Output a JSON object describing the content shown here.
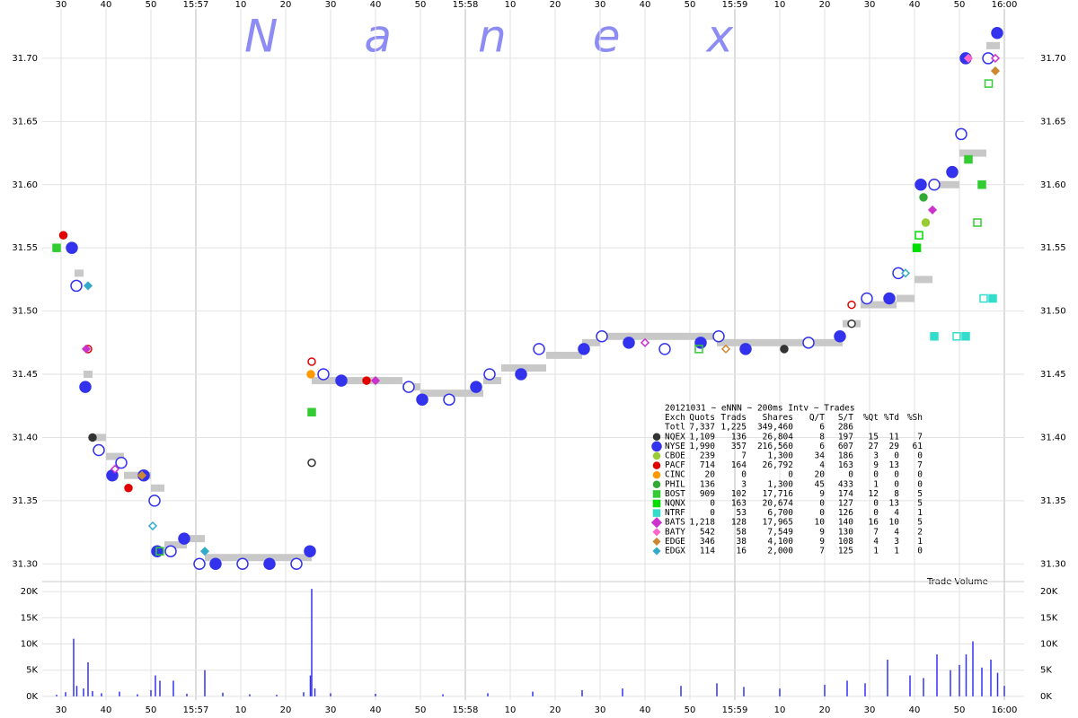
{
  "chart_data": [
    {
      "type": "scatter",
      "watermark": "Nanex",
      "xlim": [
        25.8,
        244.4
      ],
      "xticks": [
        30,
        40,
        50,
        {
          "value": 60,
          "label": "15:57"
        },
        {
          "value": 70,
          "label": "10"
        },
        {
          "value": 80,
          "label": "20"
        },
        {
          "value": 90,
          "label": "30"
        },
        {
          "value": 100,
          "label": "40"
        },
        {
          "value": 110,
          "label": "50"
        },
        {
          "value": 120,
          "label": "15:58"
        },
        {
          "value": 130,
          "label": "10"
        },
        {
          "value": 140,
          "label": "20"
        },
        {
          "value": 150,
          "label": "30"
        },
        {
          "value": 160,
          "label": "40"
        },
        {
          "value": 170,
          "label": "50"
        },
        {
          "value": 180,
          "label": "15:59"
        },
        {
          "value": 190,
          "label": "10"
        },
        {
          "value": 200,
          "label": "20"
        },
        {
          "value": 210,
          "label": "30"
        },
        {
          "value": 220,
          "label": "40"
        },
        {
          "value": 230,
          "label": "50"
        },
        {
          "value": 240,
          "label": "16:00"
        }
      ],
      "ylim": [
        31.286,
        31.739
      ],
      "yticks": [
        {
          "value": 31.3,
          "label": "31.30"
        },
        31.35,
        {
          "value": 31.4,
          "label": "31.40"
        },
        31.45,
        {
          "value": 31.5,
          "label": "31.50"
        },
        31.55,
        {
          "value": 31.6,
          "label": "31.60"
        },
        31.65,
        {
          "value": 31.7,
          "label": "31.70"
        }
      ],
      "grid": true,
      "band": {
        "color": "#c8c8c8",
        "x": [
          33,
          35,
          37,
          40,
          44,
          50,
          53,
          58,
          62,
          85.8,
          88,
          106,
          110,
          118,
          124,
          128,
          134,
          138,
          146,
          150,
          176,
          184,
          200,
          204,
          208,
          216,
          220,
          224,
          230,
          236
        ],
        "values": [
          31.53,
          31.45,
          31.4,
          31.385,
          31.37,
          31.36,
          31.315,
          31.32,
          31.305,
          31.445,
          31.445,
          31.44,
          31.435,
          31.435,
          31.445,
          31.455,
          31.455,
          31.465,
          31.475,
          31.48,
          31.475,
          31.475,
          31.475,
          31.49,
          31.505,
          31.51,
          31.525,
          31.6,
          31.625,
          31.71
        ]
      },
      "legend": {
        "title": "20121031 ~ eNNN ~ 200ms Intv ~ Trades",
        "columns": [
          "Exch",
          "Quots",
          "Trads",
          "Shares",
          "Q/T",
          "S/T",
          "%Qt",
          "%Td",
          "%Sh"
        ],
        "total": [
          "Totl",
          "7,337",
          "1,225",
          "349,460",
          "6",
          "286"
        ]
      },
      "series": [
        {
          "name": "NQEX",
          "color": "#333333",
          "marker": "circle",
          "stats": [
            "1,109",
            "136",
            "26,804",
            "8",
            "197",
            "15",
            "11",
            "7"
          ],
          "x": [
            37,
            85.8,
            191,
            206
          ],
          "values": [
            31.4,
            31.38,
            31.47,
            31.49
          ]
        },
        {
          "name": "NYSE",
          "color": "#3333ee",
          "marker": "circle",
          "stats": [
            "1,990",
            "357",
            "216,560",
            "6",
            "607",
            "27",
            "29",
            "61"
          ],
          "x": [
            32.4,
            33.4,
            35.4,
            38.4,
            41.4,
            43.4,
            48.4,
            50.8,
            51.4,
            54.4,
            57.4,
            60.8,
            64.4,
            70.4,
            76.4,
            82.4,
            85.4,
            88.4,
            92.4,
            107.4,
            110.4,
            116.4,
            122.4,
            125.4,
            132.4,
            136.4,
            146.4,
            150.4,
            156.4,
            164.4,
            172.4,
            176.4,
            182.4,
            196.4,
            203.4,
            209.4,
            214.4,
            216.4,
            221.4,
            224.4,
            228.4,
            230.4,
            231.4,
            236.4,
            238.4
          ],
          "values": [
            31.55,
            31.52,
            31.44,
            31.39,
            31.37,
            31.38,
            31.37,
            31.35,
            31.31,
            31.31,
            31.32,
            31.3,
            31.3,
            31.3,
            31.3,
            31.3,
            31.31,
            31.45,
            31.445,
            31.44,
            31.43,
            31.43,
            31.44,
            31.45,
            31.45,
            31.47,
            31.47,
            31.48,
            31.475,
            31.47,
            31.475,
            31.48,
            31.47,
            31.475,
            31.48,
            31.51,
            31.51,
            31.53,
            31.6,
            31.6,
            31.61,
            31.64,
            31.7,
            31.7,
            31.72
          ]
        },
        {
          "name": "CBOE",
          "color": "#99cc33",
          "marker": "circle",
          "stats": [
            "239",
            "7",
            "1,300",
            "34",
            "186",
            "3",
            "0",
            "0"
          ],
          "x": [
            222.5
          ],
          "values": [
            31.57
          ]
        },
        {
          "name": "PACF",
          "color": "#e00000",
          "marker": "circle",
          "stats": [
            "714",
            "164",
            "26,792",
            "4",
            "163",
            "9",
            "13",
            "7"
          ],
          "x": [
            30.5,
            36,
            45,
            85.8,
            98,
            206
          ],
          "values": [
            31.56,
            31.47,
            31.36,
            31.46,
            31.445,
            31.505
          ]
        },
        {
          "name": "CINC",
          "color": "#ff9900",
          "marker": "circle",
          "stats": [
            "20",
            "0",
            "0",
            "20",
            "0",
            "0",
            "0",
            "0"
          ],
          "x": [
            85.6
          ],
          "values": [
            31.45
          ]
        },
        {
          "name": "PHIL",
          "color": "#33aa33",
          "marker": "circle",
          "stats": [
            "136",
            "3",
            "1,300",
            "45",
            "433",
            "1",
            "0",
            "0"
          ],
          "x": [
            222
          ],
          "values": [
            31.59
          ]
        },
        {
          "name": "BOST",
          "color": "#33cc33",
          "marker": "square",
          "stats": [
            "909",
            "102",
            "17,716",
            "9",
            "174",
            "12",
            "8",
            "5"
          ],
          "x": [
            29,
            52,
            85.8,
            172,
            232,
            234,
            235,
            236.5
          ],
          "values": [
            31.55,
            31.31,
            31.42,
            31.47,
            31.62,
            31.57,
            31.6,
            31.68
          ]
        },
        {
          "name": "NQNX",
          "color": "#00dd00",
          "marker": "square",
          "stats": [
            "0",
            "163",
            "20,674",
            "0",
            "127",
            "0",
            "13",
            "5"
          ],
          "x": [
            220.5,
            221
          ],
          "values": [
            31.55,
            31.56
          ]
        },
        {
          "name": "NTRF",
          "color": "#33ddcc",
          "marker": "square",
          "stats": [
            "0",
            "53",
            "6,700",
            "0",
            "126",
            "0",
            "4",
            "1"
          ],
          "x": [
            224.4,
            229.4,
            231.4,
            235.4,
            237.4
          ],
          "values": [
            31.48,
            31.48,
            31.48,
            31.51,
            31.51
          ]
        },
        {
          "name": "BATS",
          "color": "#cc33cc",
          "marker": "diamond",
          "stats": [
            "1,218",
            "128",
            "17,965",
            "10",
            "140",
            "16",
            "10",
            "5"
          ],
          "x": [
            35.6,
            42,
            100,
            160,
            224,
            238
          ],
          "values": [
            31.47,
            31.375,
            31.445,
            31.475,
            31.58,
            31.7
          ]
        },
        {
          "name": "BATY",
          "color": "#ff66cc",
          "marker": "diamond",
          "stats": [
            "542",
            "58",
            "7,549",
            "9",
            "130",
            "7",
            "4",
            "2"
          ],
          "x": [
            232
          ],
          "values": [
            31.7
          ]
        },
        {
          "name": "EDGE",
          "color": "#cc8833",
          "marker": "diamond",
          "stats": [
            "346",
            "38",
            "4,100",
            "9",
            "108",
            "4",
            "3",
            "1"
          ],
          "x": [
            48,
            178,
            238
          ],
          "values": [
            31.37,
            31.47,
            31.69
          ]
        },
        {
          "name": "EDGX",
          "color": "#33aacc",
          "marker": "diamond",
          "stats": [
            "114",
            "16",
            "2,000",
            "7",
            "125",
            "1",
            "1",
            "0"
          ],
          "x": [
            36,
            50.4,
            62,
            218
          ],
          "values": [
            31.52,
            31.33,
            31.31,
            31.53
          ]
        }
      ]
    },
    {
      "type": "bar",
      "title": "Trade Volume",
      "color": "#3333ee",
      "xlim": [
        25.8,
        244.4
      ],
      "xticks": [
        30,
        40,
        50,
        {
          "value": 60,
          "label": "15:57"
        },
        {
          "value": 70,
          "label": "10"
        },
        {
          "value": 80,
          "label": "20"
        },
        {
          "value": 90,
          "label": "30"
        },
        {
          "value": 100,
          "label": "40"
        },
        {
          "value": 110,
          "label": "50"
        },
        {
          "value": 120,
          "label": "15:58"
        },
        {
          "value": 130,
          "label": "10"
        },
        {
          "value": 140,
          "label": "20"
        },
        {
          "value": 150,
          "label": "30"
        },
        {
          "value": 160,
          "label": "40"
        },
        {
          "value": 170,
          "label": "50"
        },
        {
          "value": 180,
          "label": "15:59"
        },
        {
          "value": 190,
          "label": "10"
        },
        {
          "value": 200,
          "label": "20"
        },
        {
          "value": 210,
          "label": "30"
        },
        {
          "value": 220,
          "label": "40"
        },
        {
          "value": 230,
          "label": "50"
        },
        {
          "value": 240,
          "label": "16:00"
        }
      ],
      "ylim": [
        -700,
        21900
      ],
      "yticks": [
        {
          "value": 0,
          "label": "0K"
        },
        {
          "value": 5000,
          "label": "5K"
        },
        {
          "value": 10000,
          "label": "10K"
        },
        {
          "value": 15000,
          "label": "15K"
        },
        {
          "value": 20000,
          "label": "20K"
        }
      ],
      "grid": true,
      "x": [
        29,
        31,
        32.8,
        33.5,
        35,
        36,
        37,
        39,
        43,
        47,
        50,
        51,
        52,
        55,
        58,
        62,
        66,
        72,
        78,
        84,
        85.5,
        85.8,
        86.5,
        90,
        100,
        115,
        125,
        135,
        146,
        155,
        168,
        176,
        182,
        190,
        200,
        205,
        209,
        214,
        219,
        222,
        225,
        228,
        230,
        231.5,
        233,
        235,
        237,
        238.5,
        240
      ],
      "values": [
        300,
        800,
        11000,
        2000,
        1500,
        6500,
        1000,
        600,
        900,
        400,
        1200,
        4000,
        3000,
        3000,
        500,
        5000,
        700,
        400,
        300,
        800,
        4000,
        20500,
        1500,
        600,
        500,
        400,
        600,
        900,
        1200,
        1500,
        2000,
        2500,
        1800,
        1500,
        2200,
        3000,
        2500,
        7000,
        4000,
        3500,
        8000,
        5000,
        6000,
        8000,
        10500,
        5500,
        7000,
        4500,
        2000
      ]
    }
  ]
}
